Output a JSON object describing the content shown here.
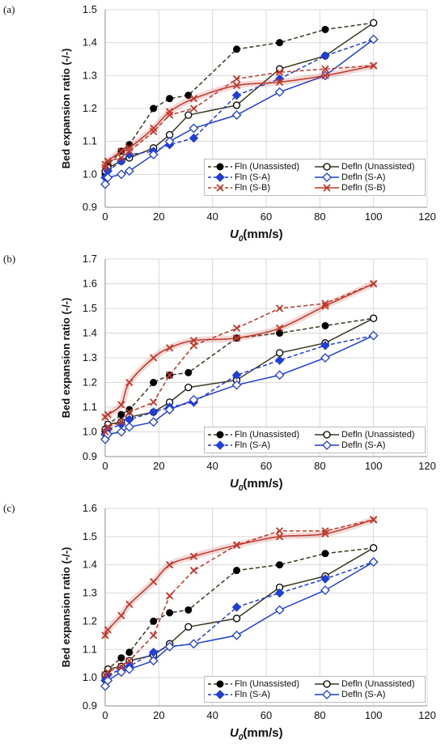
{
  "x_axis_label": "U",
  "x_axis_label_sub": "0",
  "x_axis_label_unit": "(mm/s)",
  "y_axis_label": "Bed expansion ratio (-/-)",
  "chart_data": [
    {
      "type": "line",
      "panel_label": "(a)",
      "xlabel": "U0(mm/s)",
      "ylabel": "Bed expansion ratio (-/-)",
      "xlim": [
        0,
        120
      ],
      "ylim": [
        0.9,
        1.5
      ],
      "xticks": [
        0,
        20,
        40,
        60,
        80,
        100,
        120
      ],
      "yticks": [
        0.9,
        1.0,
        1.1,
        1.2,
        1.3,
        1.4,
        1.5
      ],
      "grid": true,
      "legend_position": "bottom-right",
      "series": [
        {
          "name": "Fln (Unassisted)",
          "color": "#3b3a1e",
          "marker": "filled-circle",
          "dash": true,
          "smooth": false,
          "x": [
            0,
            1,
            6,
            9,
            18,
            24,
            31,
            49,
            65,
            82,
            100
          ],
          "y": [
            1.0,
            1.03,
            1.07,
            1.09,
            1.2,
            1.23,
            1.24,
            1.38,
            1.4,
            1.44,
            1.46
          ]
        },
        {
          "name": "Defln (Unassisted)",
          "color": "#3b3a1e",
          "marker": "open-circle",
          "dash": false,
          "smooth": false,
          "x": [
            0,
            1,
            6,
            9,
            18,
            24,
            31,
            49,
            65,
            82,
            100
          ],
          "y": [
            1.01,
            1.02,
            1.04,
            1.05,
            1.08,
            1.12,
            1.18,
            1.21,
            1.32,
            1.36,
            1.46
          ]
        },
        {
          "name": "Fln (S-A)",
          "color": "#1f3fd6",
          "marker": "filled-diamond",
          "dash": true,
          "smooth": false,
          "x": [
            0,
            1,
            6,
            9,
            18,
            24,
            33,
            49,
            65,
            82,
            100
          ],
          "y": [
            0.99,
            1.01,
            1.04,
            1.06,
            1.07,
            1.09,
            1.11,
            1.24,
            1.29,
            1.36,
            1.41
          ]
        },
        {
          "name": "Defln (S-A)",
          "color": "#1f3fd6",
          "marker": "open-diamond",
          "dash": false,
          "smooth": false,
          "x": [
            0,
            1,
            6,
            9,
            18,
            24,
            33,
            49,
            65,
            82,
            100
          ],
          "y": [
            0.97,
            0.99,
            1.0,
            1.01,
            1.06,
            1.1,
            1.14,
            1.18,
            1.25,
            1.3,
            1.41
          ]
        },
        {
          "name": "Fln (S-B)",
          "color": "#c0392b",
          "marker": "x",
          "dash": true,
          "smooth": false,
          "x": [
            0,
            1,
            6,
            9,
            18,
            24,
            33,
            49,
            65,
            82,
            100
          ],
          "y": [
            1.02,
            1.04,
            1.05,
            1.07,
            1.13,
            1.18,
            1.2,
            1.29,
            1.31,
            1.32,
            1.33
          ]
        },
        {
          "name": "Defln (S-B)",
          "color": "#c0392b",
          "marker": "x",
          "dash": false,
          "smooth": true,
          "x": [
            0,
            1,
            6,
            9,
            18,
            24,
            33,
            49,
            65,
            82,
            100
          ],
          "y": [
            1.03,
            1.04,
            1.07,
            1.08,
            1.14,
            1.19,
            1.23,
            1.27,
            1.28,
            1.3,
            1.33
          ]
        }
      ]
    },
    {
      "type": "line",
      "panel_label": "(b)",
      "xlabel": "U0(mm/s)",
      "ylabel": "Bed expansion ratio (-/-)",
      "xlim": [
        0,
        120
      ],
      "ylim": [
        0.9,
        1.7
      ],
      "xticks": [
        0,
        20,
        40,
        60,
        80,
        100,
        120
      ],
      "yticks": [
        0.9,
        1.0,
        1.1,
        1.2,
        1.3,
        1.4,
        1.5,
        1.6,
        1.7
      ],
      "grid": true,
      "legend_position": "bottom-right",
      "series": [
        {
          "name": "Fln (Unassisted)",
          "color": "#3b3a1e",
          "marker": "filled-circle",
          "dash": true,
          "smooth": false,
          "x": [
            0,
            1,
            6,
            9,
            18,
            24,
            31,
            49,
            65,
            82,
            100
          ],
          "y": [
            1.0,
            1.03,
            1.07,
            1.09,
            1.2,
            1.23,
            1.24,
            1.38,
            1.4,
            1.43,
            1.46
          ]
        },
        {
          "name": "Defln (Unassisted)",
          "color": "#3b3a1e",
          "marker": "open-circle",
          "dash": false,
          "smooth": false,
          "x": [
            0,
            1,
            6,
            9,
            18,
            24,
            31,
            49,
            65,
            82,
            100
          ],
          "y": [
            1.01,
            1.03,
            1.04,
            1.06,
            1.08,
            1.12,
            1.18,
            1.21,
            1.32,
            1.36,
            1.46
          ]
        },
        {
          "name": "Fln (S-A)",
          "color": "#1f3fd6",
          "marker": "filled-diamond",
          "dash": true,
          "smooth": false,
          "x": [
            0,
            1,
            6,
            9,
            18,
            24,
            33,
            49,
            65,
            82,
            100
          ],
          "y": [
            0.99,
            1.01,
            1.03,
            1.05,
            1.08,
            1.1,
            1.12,
            1.23,
            1.29,
            1.35,
            1.39
          ]
        },
        {
          "name": "Defln (S-A)",
          "color": "#1f3fd6",
          "marker": "open-diamond",
          "dash": false,
          "smooth": false,
          "x": [
            0,
            1,
            6,
            9,
            18,
            24,
            33,
            49,
            65,
            82,
            100
          ],
          "y": [
            0.97,
            0.99,
            1.0,
            1.02,
            1.04,
            1.09,
            1.13,
            1.19,
            1.23,
            1.3,
            1.39
          ]
        },
        {
          "name": "",
          "color": "#c0392b",
          "marker": "x",
          "dash": true,
          "smooth": false,
          "x": [
            0,
            1,
            6,
            9,
            18,
            24,
            33,
            49,
            65,
            82,
            100
          ],
          "y": [
            1.0,
            1.02,
            1.04,
            1.08,
            1.12,
            1.23,
            1.35,
            1.42,
            1.5,
            1.52,
            1.6
          ]
        },
        {
          "name": "",
          "color": "#c0392b",
          "marker": "x",
          "dash": false,
          "smooth": true,
          "x": [
            0,
            1,
            6,
            9,
            18,
            24,
            33,
            49,
            65,
            82,
            100
          ],
          "y": [
            1.06,
            1.07,
            1.11,
            1.2,
            1.3,
            1.34,
            1.37,
            1.38,
            1.42,
            1.51,
            1.6
          ]
        }
      ]
    },
    {
      "type": "line",
      "panel_label": "(c)",
      "xlabel": "U0(mm/s)",
      "ylabel": "Bed expansion ratio (-/-)",
      "xlim": [
        0,
        120
      ],
      "ylim": [
        0.9,
        1.6
      ],
      "xticks": [
        0,
        20,
        40,
        60,
        80,
        100,
        120
      ],
      "yticks": [
        0.9,
        1.0,
        1.1,
        1.2,
        1.3,
        1.4,
        1.5,
        1.6
      ],
      "grid": true,
      "legend_position": "bottom-right",
      "series": [
        {
          "name": "Fln (Unassisted)",
          "color": "#3b3a1e",
          "marker": "filled-circle",
          "dash": true,
          "smooth": false,
          "x": [
            0,
            1,
            6,
            9,
            18,
            24,
            31,
            49,
            65,
            82,
            100
          ],
          "y": [
            1.0,
            1.03,
            1.07,
            1.09,
            1.2,
            1.23,
            1.24,
            1.38,
            1.4,
            1.44,
            1.46
          ]
        },
        {
          "name": "Defln (Unassisted)",
          "color": "#3b3a1e",
          "marker": "open-circle",
          "dash": false,
          "smooth": false,
          "x": [
            0,
            1,
            6,
            9,
            18,
            24,
            31,
            49,
            65,
            82,
            100
          ],
          "y": [
            1.01,
            1.03,
            1.04,
            1.06,
            1.08,
            1.12,
            1.18,
            1.21,
            1.32,
            1.36,
            1.46
          ]
        },
        {
          "name": "Fln (S-A)",
          "color": "#1f3fd6",
          "marker": "filled-diamond",
          "dash": true,
          "smooth": false,
          "x": [
            0,
            1,
            6,
            9,
            18,
            24,
            33,
            49,
            65,
            82,
            100
          ],
          "y": [
            0.99,
            1.01,
            1.03,
            1.04,
            1.09,
            1.11,
            1.12,
            1.25,
            1.3,
            1.35,
            1.41
          ]
        },
        {
          "name": "Defln (S-A)",
          "color": "#1f3fd6",
          "marker": "open-diamond",
          "dash": false,
          "smooth": false,
          "x": [
            0,
            1,
            6,
            9,
            18,
            24,
            33,
            49,
            65,
            82,
            100
          ],
          "y": [
            0.97,
            0.99,
            1.02,
            1.03,
            1.06,
            1.11,
            1.12,
            1.15,
            1.24,
            1.31,
            1.41
          ]
        },
        {
          "name": "",
          "color": "#c0392b",
          "marker": "x",
          "dash": true,
          "smooth": false,
          "x": [
            0,
            1,
            6,
            9,
            18,
            24,
            33,
            49,
            65,
            82,
            100
          ],
          "y": [
            1.01,
            1.02,
            1.04,
            1.06,
            1.15,
            1.29,
            1.38,
            1.47,
            1.52,
            1.52,
            1.56
          ]
        },
        {
          "name": "",
          "color": "#c0392b",
          "marker": "x",
          "dash": false,
          "smooth": true,
          "x": [
            0,
            1,
            6,
            9,
            18,
            24,
            33,
            49,
            65,
            82,
            100
          ],
          "y": [
            1.15,
            1.17,
            1.22,
            1.26,
            1.34,
            1.4,
            1.43,
            1.47,
            1.5,
            1.51,
            1.56
          ]
        }
      ]
    }
  ]
}
